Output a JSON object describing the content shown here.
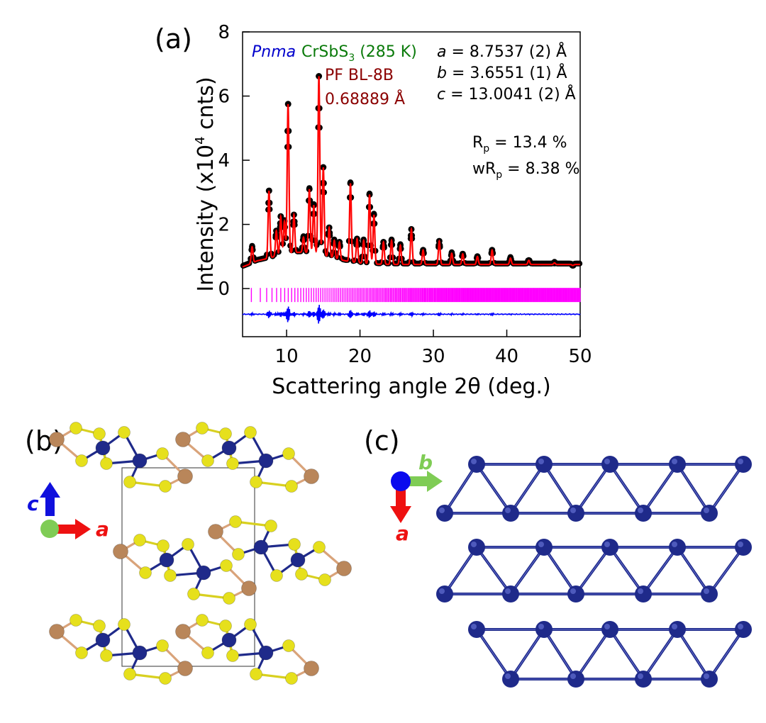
{
  "panels": {
    "a": "(a)",
    "b": "(b)",
    "c": "(c)"
  },
  "annotations": {
    "space_group": "Pnma",
    "compound_base": "CrSbS",
    "compound_sub": "3",
    "compound_temp": " (285 K)",
    "beamline": "PF BL-8B",
    "wavelength": "0.68889 Å",
    "lattice_a_sym": "a",
    "lattice_a_val": " = 8.7537 (2) Å",
    "lattice_b_sym": "b",
    "lattice_b_val": " = 3.6551 (1) Å",
    "lattice_c_sym": "c",
    "lattice_c_val": " = 13.0041 (2) Å",
    "rp_base": "R",
    "rp_sub": "p",
    "rp_val": " = 13.4 %",
    "wrp_base": "wR",
    "wrp_sub": "p",
    "wrp_val": " = 8.38 %"
  },
  "chart_data": {
    "type": "line",
    "title": "",
    "xlabel": "Scattering angle 2θ (deg.)",
    "ylabel_pre": "Intensity (x10",
    "ylabel_sup": "4",
    "ylabel_post": " cnts)",
    "xlim": [
      4,
      50
    ],
    "ylim": [
      -1.5,
      8
    ],
    "xticks": [
      10,
      20,
      30,
      40,
      50
    ],
    "yticks": [
      0,
      2,
      4,
      6,
      8
    ],
    "background_level": 0.75,
    "peaks": [
      {
        "x": 5.3,
        "y": 1.3
      },
      {
        "x": 7.6,
        "y": 3.05
      },
      {
        "x": 8.6,
        "y": 1.8
      },
      {
        "x": 9.2,
        "y": 2.25
      },
      {
        "x": 9.7,
        "y": 2.1
      },
      {
        "x": 10.2,
        "y": 5.75
      },
      {
        "x": 11.0,
        "y": 2.3
      },
      {
        "x": 12.3,
        "y": 1.6
      },
      {
        "x": 13.1,
        "y": 3.1
      },
      {
        "x": 13.7,
        "y": 2.6
      },
      {
        "x": 14.4,
        "y": 6.62
      },
      {
        "x": 15.0,
        "y": 3.78
      },
      {
        "x": 15.8,
        "y": 1.9
      },
      {
        "x": 16.5,
        "y": 1.5
      },
      {
        "x": 17.2,
        "y": 1.45
      },
      {
        "x": 18.7,
        "y": 3.28
      },
      {
        "x": 19.6,
        "y": 1.55
      },
      {
        "x": 20.5,
        "y": 1.5
      },
      {
        "x": 21.3,
        "y": 2.93
      },
      {
        "x": 21.9,
        "y": 2.3
      },
      {
        "x": 23.2,
        "y": 1.45
      },
      {
        "x": 24.3,
        "y": 1.5
      },
      {
        "x": 25.5,
        "y": 1.35
      },
      {
        "x": 27.0,
        "y": 1.85
      },
      {
        "x": 28.6,
        "y": 1.2
      },
      {
        "x": 30.8,
        "y": 1.48
      },
      {
        "x": 32.5,
        "y": 1.1
      },
      {
        "x": 34.0,
        "y": 1.08
      },
      {
        "x": 36.0,
        "y": 1.0
      },
      {
        "x": 38.0,
        "y": 1.2
      },
      {
        "x": 40.5,
        "y": 0.95
      },
      {
        "x": 43.0,
        "y": 0.88
      },
      {
        "x": 46.5,
        "y": 0.8
      },
      {
        "x": 49.0,
        "y": 0.72
      }
    ],
    "bragg_tick_level": -0.2,
    "difference_level": -0.8,
    "series": [
      {
        "role": "observed",
        "color": "#000000"
      },
      {
        "role": "calculated",
        "color": "#ff0000"
      },
      {
        "role": "bragg",
        "color": "#ff00ff"
      },
      {
        "role": "difference",
        "color": "#0000ff"
      }
    ]
  },
  "axes_b": {
    "c": "c",
    "a": "a"
  },
  "axes_c": {
    "b": "b",
    "a": "a"
  },
  "colors": {
    "cr": "#1f2a8a",
    "s": "#e6e01c",
    "sb": "#b9865a",
    "bond": "#1f2a8a"
  }
}
